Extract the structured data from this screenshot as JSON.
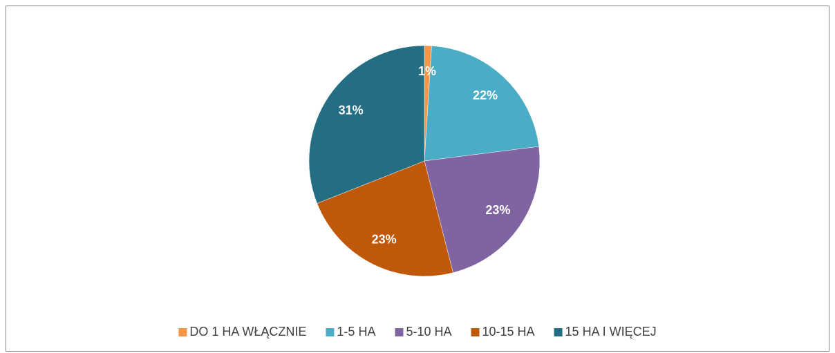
{
  "chart_data": {
    "type": "pie",
    "categories": [
      "DO 1 HA WŁĄCZNIE",
      "1-5 HA",
      "5-10 HA",
      "10-15 HA",
      "15 HA I WIĘCEJ"
    ],
    "values": [
      1,
      22,
      23,
      23,
      31
    ],
    "value_labels": [
      "1%",
      "22%",
      "23%",
      "23%",
      "31%"
    ],
    "colors": [
      "#f79646",
      "#4bacc6",
      "#8064a2",
      "#c0580a",
      "#236e82"
    ],
    "legend": "bottom"
  }
}
